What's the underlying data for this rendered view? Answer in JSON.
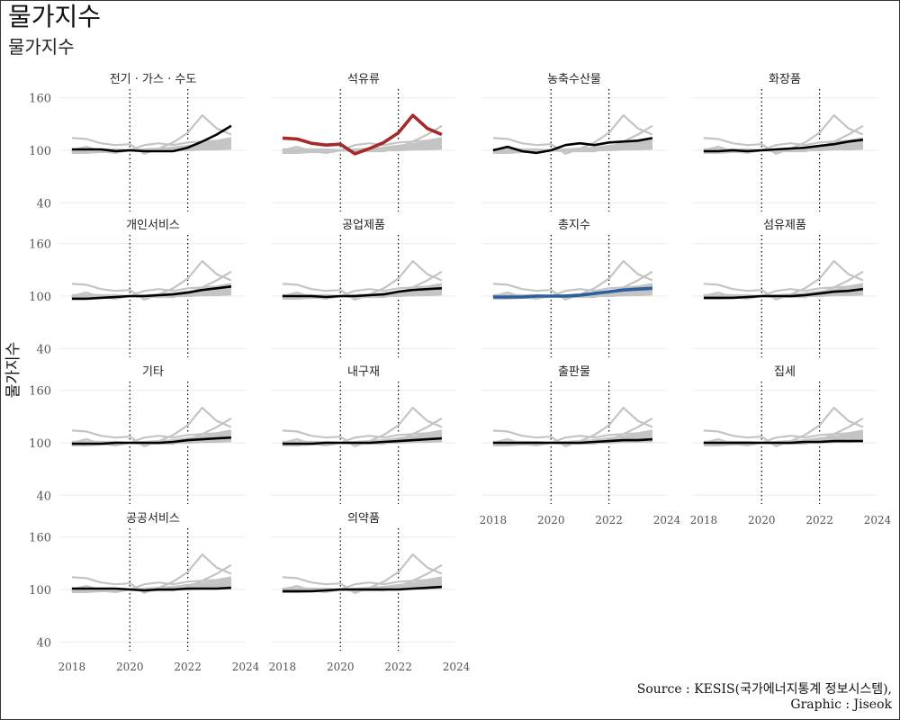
{
  "header": {
    "title": "물가지수",
    "subtitle": "물가지수"
  },
  "caption": {
    "source": "Source : KESIS(국가에너지통계 정보시스템),",
    "graphic": "Graphic : Jiseok"
  },
  "colors": {
    "background_series": "#c4c4c4",
    "highlight_default": "#000000",
    "highlight_petroleum": "#a52a2a",
    "highlight_total": "#2b5f9e",
    "grid": "#ebebeb",
    "vline": "#000000"
  },
  "chart_data": {
    "type": "line",
    "layout": "faceted small multiples (4 columns)",
    "ylabel": "물가지수",
    "xlabel": "",
    "ylim": [
      30,
      170
    ],
    "yticks": [
      40,
      100,
      160
    ],
    "xlim": [
      2017.6,
      2024
    ],
    "xticks": [
      2018,
      2020,
      2022,
      2024
    ],
    "reference_lines_x": [
      2020,
      2022
    ],
    "grid": true,
    "x": [
      2018.0,
      2018.5,
      2019.0,
      2019.5,
      2020.0,
      2020.5,
      2021.0,
      2021.5,
      2022.0,
      2022.5,
      2023.0,
      2023.5
    ],
    "series": [
      {
        "name": "전기 · 가스 · 수도",
        "values": [
          101,
          101,
          101,
          99,
          100,
          99,
          99,
          99,
          103,
          110,
          118,
          128
        ]
      },
      {
        "name": "석유류",
        "values": [
          114,
          113,
          108,
          106,
          107,
          96,
          102,
          109,
          120,
          140,
          125,
          118
        ]
      },
      {
        "name": "농축수산물",
        "values": [
          100,
          104,
          99,
          97,
          100,
          106,
          108,
          106,
          109,
          110,
          111,
          114
        ]
      },
      {
        "name": "화장품",
        "values": [
          99,
          99,
          100,
          99,
          100,
          101,
          102,
          103,
          105,
          107,
          110,
          112
        ]
      },
      {
        "name": "개인서비스",
        "values": [
          97,
          97,
          98,
          99,
          100,
          100,
          101,
          102,
          104,
          107,
          109,
          111
        ]
      },
      {
        "name": "공업제품",
        "values": [
          100,
          100,
          100,
          99,
          100,
          100,
          101,
          102,
          105,
          107,
          108,
          109
        ]
      },
      {
        "name": "총지수",
        "values": [
          99,
          99,
          99,
          100,
          100,
          100,
          101,
          103,
          105,
          107,
          108,
          109
        ]
      },
      {
        "name": "섬유제품",
        "values": [
          98,
          98,
          98,
          99,
          100,
          100,
          100,
          101,
          103,
          105,
          106,
          108
        ]
      },
      {
        "name": "기타",
        "values": [
          99,
          99,
          99,
          100,
          100,
          100,
          100,
          101,
          103,
          104,
          105,
          106
        ]
      },
      {
        "name": "내구재",
        "values": [
          99,
          99,
          99,
          100,
          100,
          100,
          100,
          101,
          102,
          103,
          104,
          105
        ]
      },
      {
        "name": "출판물",
        "values": [
          100,
          100,
          100,
          100,
          100,
          100,
          100,
          101,
          102,
          103,
          103,
          104
        ]
      },
      {
        "name": "집세",
        "values": [
          100,
          100,
          100,
          100,
          100,
          100,
          100,
          101,
          101,
          102,
          102,
          102
        ]
      },
      {
        "name": "공공서비스",
        "values": [
          101,
          101,
          101,
          101,
          100,
          99,
          100,
          100,
          101,
          101,
          101,
          102
        ]
      },
      {
        "name": "의약품",
        "values": [
          98,
          98,
          98,
          99,
          100,
          100,
          100,
          100,
          100,
          101,
          102,
          103
        ]
      }
    ],
    "highlight_colors": {
      "석유류": "#a52a2a",
      "총지수": "#2b5f9e"
    }
  }
}
